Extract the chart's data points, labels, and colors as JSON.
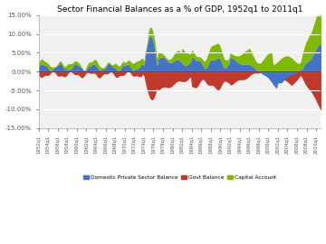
{
  "title": "Sector Financial Balances as a % of GDP, 1952q1 to 2011q1",
  "ylim": [
    -15,
    15
  ],
  "yticks": [
    -15,
    -10,
    -5,
    0,
    5,
    10,
    15
  ],
  "ytick_labels": [
    "-15.00%",
    "-10.00%",
    "-5.00%",
    "0.00%",
    "5.00%",
    "10.00%",
    "15.00%"
  ],
  "legend_labels": [
    "Domestic Private Sector Balance",
    "Govt Balance",
    "Capital Account"
  ],
  "colors": {
    "domestic": "#4472C4",
    "govt": "#C0392B",
    "capital": "#7FBA00"
  },
  "bg_color": "#F0F0F0",
  "grid_color": "white",
  "n_quarters": 237,
  "start_year": 1952
}
